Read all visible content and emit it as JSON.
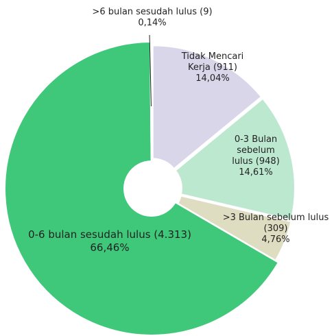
{
  "chart_data": {
    "type": "pie",
    "categories": [
      "Tidak Mencari Kerja (911)",
      "0-3 Bulan sebelum lulus (948)",
      ">3 Bulan sebelum lulus (309)",
      "0-6 bulan sesudah lulus (4.313)",
      ">6 bulan sesudah lulus (9)"
    ],
    "values": [
      14.04,
      14.61,
      4.76,
      66.46,
      0.14
    ],
    "value_labels": [
      "14,04%",
      "14,61%",
      "4,76%",
      "66,46%",
      "0,14%"
    ],
    "colors": [
      "#d9d6e9",
      "#bde8d0",
      "#deddc2",
      "#3fc87a",
      "#7fd9a2"
    ]
  }
}
